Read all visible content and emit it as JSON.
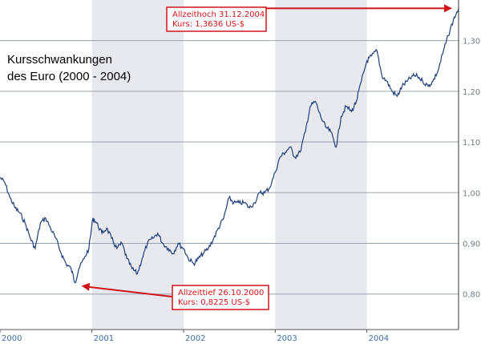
{
  "chart_data": {
    "type": "line",
    "title_lines": [
      "Kursschwankungen",
      "des Euro (2000 - 2004)"
    ],
    "x_range": [
      "2000-01-01",
      "2004-12-31"
    ],
    "y_range": [
      0.73,
      1.38
    ],
    "y_ticks": [
      0.8,
      0.9,
      1.0,
      1.1,
      1.2,
      1.3
    ],
    "y_tick_labels": [
      "0,80",
      "0,90",
      "1,00",
      "1,10",
      "1,20",
      "1,30"
    ],
    "x_tick_labels": [
      "2000",
      "2001",
      "2002",
      "2003",
      "2004"
    ],
    "grid": true,
    "shaded_years": [
      "2001",
      "2003"
    ],
    "series": [
      {
        "color": "#1f3f7a",
        "points": [
          [
            "2000-01-01",
            1.03
          ],
          [
            "2000-01-20",
            1.02
          ],
          [
            "2000-02-10",
            0.99
          ],
          [
            "2000-03-01",
            0.97
          ],
          [
            "2000-03-20",
            0.96
          ],
          [
            "2000-04-10",
            0.94
          ],
          [
            "2000-05-01",
            0.91
          ],
          [
            "2000-05-20",
            0.89
          ],
          [
            "2000-06-10",
            0.94
          ],
          [
            "2000-07-01",
            0.95
          ],
          [
            "2000-07-20",
            0.93
          ],
          [
            "2000-08-10",
            0.91
          ],
          [
            "2000-09-01",
            0.88
          ],
          [
            "2000-09-20",
            0.86
          ],
          [
            "2000-10-10",
            0.85
          ],
          [
            "2000-10-26",
            0.8225
          ],
          [
            "2000-11-10",
            0.85
          ],
          [
            "2000-12-01",
            0.87
          ],
          [
            "2000-12-20",
            0.89
          ],
          [
            "2001-01-05",
            0.95
          ],
          [
            "2001-01-20",
            0.94
          ],
          [
            "2001-02-10",
            0.92
          ],
          [
            "2001-03-01",
            0.93
          ],
          [
            "2001-03-20",
            0.91
          ],
          [
            "2001-04-10",
            0.89
          ],
          [
            "2001-05-01",
            0.9
          ],
          [
            "2001-05-20",
            0.87
          ],
          [
            "2001-06-10",
            0.85
          ],
          [
            "2001-07-01",
            0.84
          ],
          [
            "2001-07-20",
            0.87
          ],
          [
            "2001-08-10",
            0.9
          ],
          [
            "2001-09-01",
            0.91
          ],
          [
            "2001-09-20",
            0.92
          ],
          [
            "2001-10-10",
            0.9
          ],
          [
            "2001-11-01",
            0.89
          ],
          [
            "2001-11-20",
            0.88
          ],
          [
            "2001-12-10",
            0.9
          ],
          [
            "2002-01-01",
            0.89
          ],
          [
            "2002-01-20",
            0.87
          ],
          [
            "2002-02-10",
            0.86
          ],
          [
            "2002-03-01",
            0.87
          ],
          [
            "2002-03-20",
            0.88
          ],
          [
            "2002-04-10",
            0.89
          ],
          [
            "2002-05-01",
            0.91
          ],
          [
            "2002-05-20",
            0.93
          ],
          [
            "2002-06-10",
            0.95
          ],
          [
            "2002-07-01",
            0.99
          ],
          [
            "2002-07-20",
            0.98
          ],
          [
            "2002-08-10",
            0.98
          ],
          [
            "2002-09-01",
            0.98
          ],
          [
            "2002-09-20",
            0.97
          ],
          [
            "2002-10-10",
            0.98
          ],
          [
            "2002-11-01",
            1.0
          ],
          [
            "2002-11-20",
            1.0
          ],
          [
            "2002-12-10",
            1.01
          ],
          [
            "2003-01-01",
            1.04
          ],
          [
            "2003-01-20",
            1.07
          ],
          [
            "2003-02-10",
            1.08
          ],
          [
            "2003-03-01",
            1.09
          ],
          [
            "2003-03-20",
            1.07
          ],
          [
            "2003-04-10",
            1.08
          ],
          [
            "2003-05-01",
            1.12
          ],
          [
            "2003-05-20",
            1.17
          ],
          [
            "2003-06-10",
            1.18
          ],
          [
            "2003-07-01",
            1.15
          ],
          [
            "2003-07-20",
            1.13
          ],
          [
            "2003-08-10",
            1.12
          ],
          [
            "2003-09-01",
            1.09
          ],
          [
            "2003-09-20",
            1.15
          ],
          [
            "2003-10-10",
            1.17
          ],
          [
            "2003-11-01",
            1.16
          ],
          [
            "2003-11-20",
            1.18
          ],
          [
            "2003-12-10",
            1.22
          ],
          [
            "2004-01-01",
            1.26
          ],
          [
            "2004-01-20",
            1.27
          ],
          [
            "2004-02-10",
            1.28
          ],
          [
            "2004-03-01",
            1.23
          ],
          [
            "2004-03-20",
            1.22
          ],
          [
            "2004-04-10",
            1.2
          ],
          [
            "2004-05-01",
            1.19
          ],
          [
            "2004-05-20",
            1.21
          ],
          [
            "2004-06-10",
            1.22
          ],
          [
            "2004-07-01",
            1.23
          ],
          [
            "2004-07-20",
            1.23
          ],
          [
            "2004-08-10",
            1.22
          ],
          [
            "2004-09-01",
            1.21
          ],
          [
            "2004-09-20",
            1.22
          ],
          [
            "2004-10-10",
            1.24
          ],
          [
            "2004-11-01",
            1.28
          ],
          [
            "2004-11-20",
            1.31
          ],
          [
            "2004-12-10",
            1.34
          ],
          [
            "2004-12-31",
            1.3636
          ]
        ]
      }
    ],
    "annotations": [
      {
        "lines": [
          "Allzeithoch 31.12.2004",
          "Kurs: 1,3636 US-$"
        ],
        "date": "2004-12-31",
        "value": 1.3636
      },
      {
        "lines": [
          "Allzeittief 26.10.2000",
          "Kurs: 0,8225 US-$"
        ],
        "date": "2000-10-26",
        "value": 0.8225
      }
    ],
    "colors": {
      "line": "#1f3f7a",
      "grid": "#9aa3ad",
      "shade": "#e8e8ef",
      "annotation": "#d0141a",
      "tick_x": "#3b6fa5"
    }
  }
}
